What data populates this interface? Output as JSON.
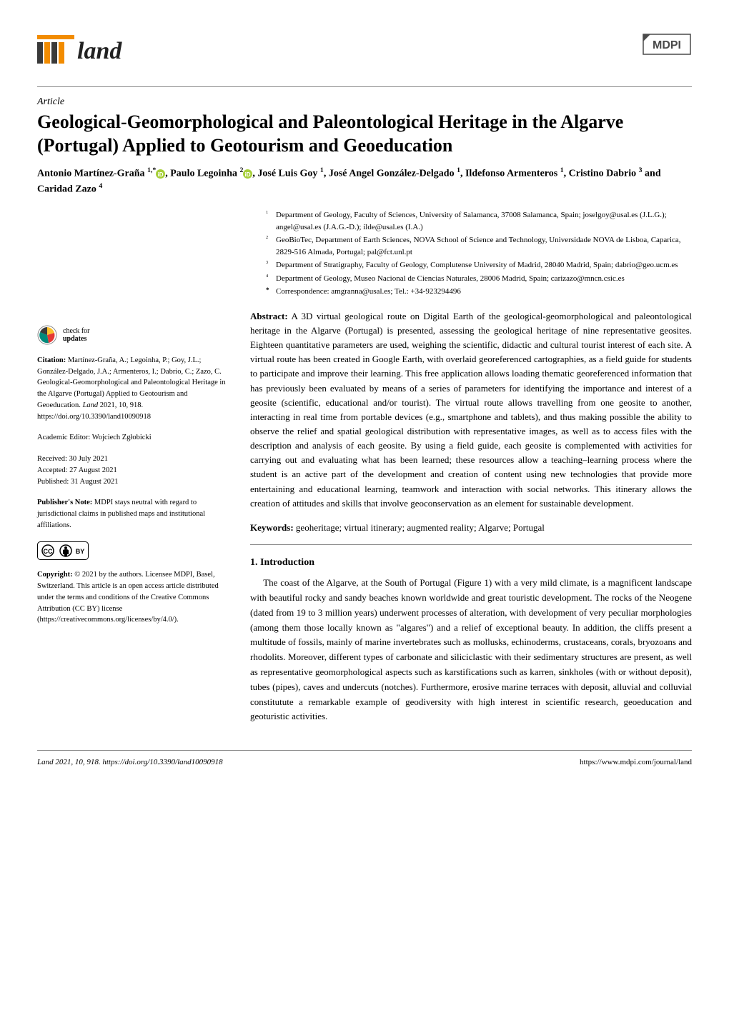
{
  "colors": {
    "brand_orange": "#f28c00",
    "brand_dark": "#3a3a3a",
    "text": "#000000",
    "rule": "#888888",
    "orcid_green": "#a6ce39",
    "link": "#000000",
    "cc_border": "#000000",
    "cc_fill": "#ffffff",
    "check_yellow": "#fbc02d",
    "check_teal": "#00897b",
    "check_red": "#e53935",
    "mdpi_gray": "#4a4a4a"
  },
  "header": {
    "journal_name": "land",
    "publisher_logo_text": "MDPI"
  },
  "article": {
    "type": "Article",
    "title": "Geological-Geomorphological and Paleontological Heritage in the Algarve (Portugal) Applied to Geotourism and Geoeducation",
    "authors_html": "Antonio Martínez-Graña 1,* , Paulo Legoinha 2 , José Luis Goy 1, José Angel González-Delgado 1, Ildefonso Armenteros 1, Cristino Dabrio 3 and Caridad Zazo 4",
    "authors": [
      {
        "name": "Antonio Martínez-Graña",
        "sup": "1,*",
        "orcid": true
      },
      {
        "name": "Paulo Legoinha",
        "sup": "2",
        "orcid": true
      },
      {
        "name": "José Luis Goy",
        "sup": "1",
        "orcid": false
      },
      {
        "name": "José Angel González-Delgado",
        "sup": "1",
        "orcid": false
      },
      {
        "name": "Ildefonso Armenteros",
        "sup": "1",
        "orcid": false
      },
      {
        "name": "Cristino Dabrio",
        "sup": "3",
        "orcid": false
      },
      {
        "name": "Caridad Zazo",
        "sup": "4",
        "orcid": false
      }
    ],
    "affiliations": [
      {
        "sup": "1",
        "text": "Department of Geology, Faculty of Sciences, University of Salamanca, 37008 Salamanca, Spain; joselgoy@usal.es (J.L.G.); angel@usal.es (J.A.G.-D.); ilde@usal.es (I.A.)"
      },
      {
        "sup": "2",
        "text": "GeoBioTec, Department of Earth Sciences, NOVA School of Science and Technology, Universidade NOVA de Lisboa, Caparica, 2829-516 Almada, Portugal; pal@fct.unl.pt"
      },
      {
        "sup": "3",
        "text": "Department of Stratigraphy, Faculty of Geology, Complutense University of Madrid, 28040 Madrid, Spain; dabrio@geo.ucm.es"
      },
      {
        "sup": "4",
        "text": "Department of Geology, Museo Nacional de Ciencias Naturales, 28006 Madrid, Spain; carizazo@mncn.csic.es"
      }
    ],
    "correspondence": {
      "sup": "*",
      "text": "Correspondence: amgranna@usal.es; Tel.: +34-923294496"
    }
  },
  "abstract": {
    "label": "Abstract:",
    "text": "A 3D virtual geological route on Digital Earth of the geological-geomorphological and paleontological heritage in the Algarve (Portugal) is presented, assessing the geological heritage of nine representative geosites. Eighteen quantitative parameters are used, weighing the scientific, didactic and cultural tourist interest of each site. A virtual route has been created in Google Earth, with overlaid georeferenced cartographies, as a field guide for students to participate and improve their learning. This free application allows loading thematic georeferenced information that has previously been evaluated by means of a series of parameters for identifying the importance and interest of a geosite (scientific, educational and/or tourist). The virtual route allows travelling from one geosite to another, interacting in real time from portable devices (e.g., smartphone and tablets), and thus making possible the ability to observe the relief and spatial geological distribution with representative images, as well as to access files with the description and analysis of each geosite. By using a field guide, each geosite is complemented with activities for carrying out and evaluating what has been learned; these resources allow a teaching–learning process where the student is an active part of the development and creation of content using new technologies that provide more entertaining and educational learning, teamwork and interaction with social networks. This itinerary allows the creation of attitudes and skills that involve geoconservation as an element for sustainable development."
  },
  "keywords": {
    "label": "Keywords:",
    "text": "geoheritage; virtual itinerary; augmented reality; Algarve; Portugal"
  },
  "intro": {
    "heading": "1. Introduction",
    "paragraph": "The coast of the Algarve, at the South of Portugal (Figure 1) with a very mild climate, is a magnificent landscape with beautiful rocky and sandy beaches known worldwide and great touristic development. The rocks of the Neogene (dated from 19 to 3 million years) underwent processes of alteration, with development of very peculiar morphologies (among them those locally known as \"algares\") and a relief of exceptional beauty. In addition, the cliffs present a multitude of fossils, mainly of marine invertebrates such as mollusks, echinoderms, crustaceans, corals, bryozoans and rhodolits. Moreover, different types of carbonate and siliciclastic with their sedimentary structures are present, as well as representative geomorphological aspects such as karstifications such as karren, sinkholes (with or without deposit), tubes (pipes), caves and undercuts (notches). Furthermore, erosive marine terraces with deposit, alluvial and colluvial constitutute a remarkable example of geodiversity with high interest in scientific research, geoeducation and geoturistic activities."
  },
  "sidebar": {
    "check_updates": {
      "line1": "check for",
      "line2": "updates"
    },
    "citation": {
      "label": "Citation:",
      "text": "Martínez-Graña, A.; Legoinha, P.; Goy, J.L.; González-Delgado, J.A.; Armenteros, I.; Dabrio, C.; Zazo, C. Geological-Geomorphological and Paleontological Heritage in the Algarve (Portugal) Applied to Geotourism and Geoeducation. ",
      "journal": "Land",
      "year_vol": "2021, 10, 918. https://doi.org/10.3390/land10090918"
    },
    "academic_editor": {
      "label": "Academic Editor:",
      "name": "Wojciech Zgłobicki"
    },
    "dates": {
      "received": "Received: 30 July 2021",
      "accepted": "Accepted: 27 August 2021",
      "published": "Published: 31 August 2021"
    },
    "publishers_note": {
      "label": "Publisher's Note:",
      "text": "MDPI stays neutral with regard to jurisdictional claims in published maps and institutional affiliations."
    },
    "copyright": {
      "label": "Copyright:",
      "text": "© 2021 by the authors. Licensee MDPI, Basel, Switzerland. This article is an open access article distributed under the terms and conditions of the Creative Commons Attribution (CC BY) license (https://creativecommons.org/licenses/by/4.0/)."
    }
  },
  "footer": {
    "left": "Land 2021, 10, 918. https://doi.org/10.3390/land10090918",
    "right": "https://www.mdpi.com/journal/land"
  },
  "typography": {
    "title_fontsize_pt": 20,
    "body_fontsize_pt": 10,
    "sidebar_fontsize_pt": 8,
    "footer_fontsize_pt": 8.5,
    "font_family": "Palatino"
  }
}
